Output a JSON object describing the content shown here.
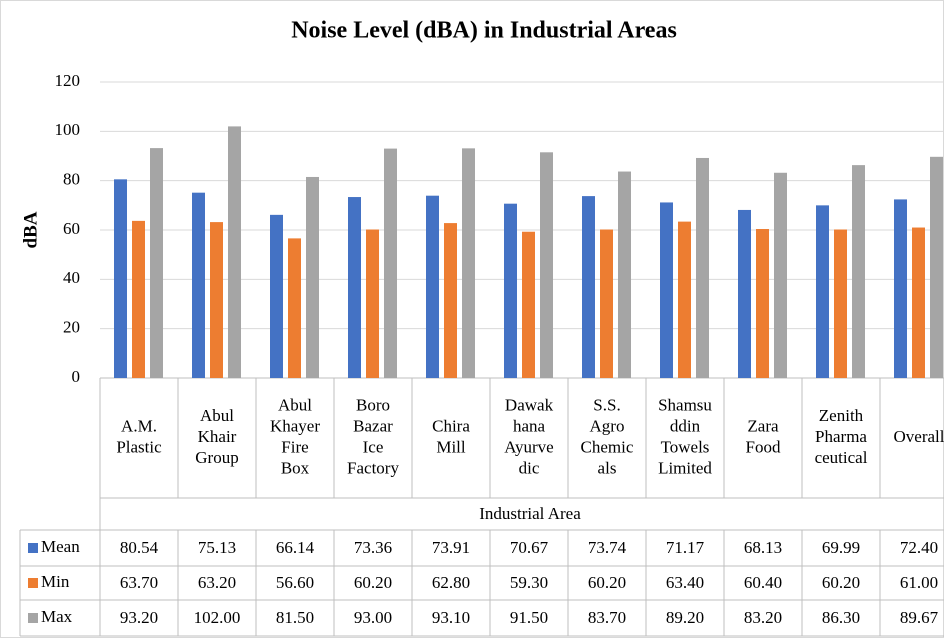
{
  "chart_data": {
    "type": "bar",
    "title": "Noise Level (dBA) in Industrial Areas",
    "y_label": "dBA",
    "x_label": "Industrial Area",
    "categories": [
      [
        "A.M.",
        "Plastic"
      ],
      [
        "Abul",
        "Khair",
        "Group"
      ],
      [
        "Abul",
        "Khayer",
        "Fire",
        "Box"
      ],
      [
        "Boro",
        "Bazar",
        "Ice",
        "Factory"
      ],
      [
        "Chira",
        "Mill"
      ],
      [
        "Dawak",
        "hana",
        "Ayurve",
        "dic"
      ],
      [
        "S.S.",
        "Agro",
        "Chemic",
        "als"
      ],
      [
        "Shamsu",
        "ddin",
        "Towels",
        "Limited"
      ],
      [
        "Zara",
        "Food"
      ],
      [
        "Zenith",
        "Pharma",
        "ceutical"
      ],
      [
        "Overall"
      ]
    ],
    "series": [
      {
        "name": "Mean",
        "color": "#4472c4",
        "values": [
          80.54,
          75.13,
          66.14,
          73.36,
          73.91,
          70.67,
          73.74,
          71.17,
          68.13,
          69.99,
          72.4
        ],
        "value_labels": [
          "80.54",
          "75.13",
          "66.14",
          "73.36",
          "73.91",
          "70.67",
          "73.74",
          "71.17",
          "68.13",
          "69.99",
          "72.40"
        ]
      },
      {
        "name": "Min",
        "color": "#ed7d31",
        "values": [
          63.7,
          63.2,
          56.6,
          60.2,
          62.8,
          59.3,
          60.2,
          63.4,
          60.4,
          60.2,
          61.0
        ],
        "value_labels": [
          "63.70",
          "63.20",
          "56.60",
          "60.20",
          "62.80",
          "59.30",
          "60.20",
          "63.40",
          "60.40",
          "60.20",
          "61.00"
        ]
      },
      {
        "name": "Max",
        "color": "#a5a5a5",
        "values": [
          93.2,
          102.0,
          81.5,
          93.0,
          93.1,
          91.5,
          83.7,
          89.2,
          83.2,
          86.3,
          89.67
        ],
        "value_labels": [
          "93.20",
          "102.00",
          "81.50",
          "93.00",
          "93.10",
          "91.50",
          "83.70",
          "89.20",
          "83.20",
          "86.30",
          "89.67"
        ]
      }
    ],
    "ylim": [
      0,
      120
    ],
    "yticks": [
      0,
      20,
      40,
      60,
      80,
      100,
      120
    ],
    "grid": true
  }
}
